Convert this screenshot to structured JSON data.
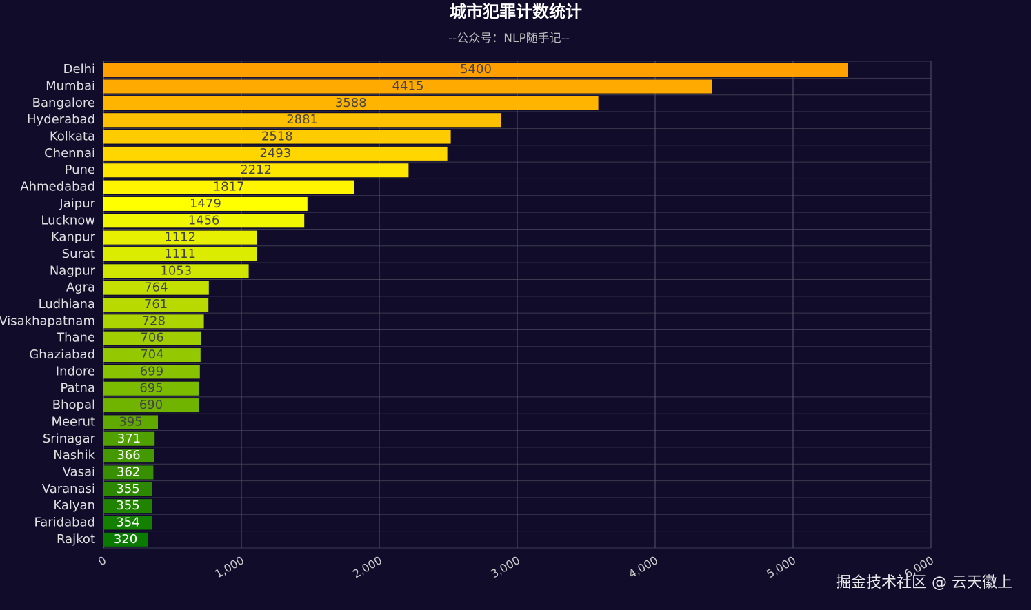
{
  "chart_data": {
    "type": "hbar",
    "title": "城市犯罪计数统计",
    "subtitle": "--公众号：NLP随手记--",
    "categories": [
      "Delhi",
      "Mumbai",
      "Bangalore",
      "Hyderabad",
      "Kolkata",
      "Chennai",
      "Pune",
      "Ahmedabad",
      "Jaipur",
      "Lucknow",
      "Kanpur",
      "Surat",
      "Nagpur",
      "Agra",
      "Ludhiana",
      "Visakhapatnam",
      "Thane",
      "Ghaziabad",
      "Indore",
      "Patna",
      "Bhopal",
      "Meerut",
      "Srinagar",
      "Nashik",
      "Vasai",
      "Varanasi",
      "Kalyan",
      "Faridabad",
      "Rajkot"
    ],
    "values": [
      5400,
      4415,
      3588,
      2881,
      2518,
      2493,
      2212,
      1817,
      1479,
      1456,
      1112,
      1111,
      1053,
      764,
      761,
      728,
      706,
      704,
      699,
      695,
      690,
      395,
      371,
      366,
      362,
      355,
      355,
      354,
      320
    ],
    "colors": [
      "#ffa000",
      "#ffaa00",
      "#ffb400",
      "#ffc000",
      "#ffcc00",
      "#ffd600",
      "#ffe600",
      "#fff500",
      "#ffff00",
      "#f0f500",
      "#e6f000",
      "#dcec00",
      "#d0e600",
      "#c4e000",
      "#b8da00",
      "#acd400",
      "#a0ce00",
      "#94c800",
      "#88c200",
      "#7cbc00",
      "#70b400",
      "#60aa00",
      "#50a000",
      "#449800",
      "#389000",
      "#2c8800",
      "#208400",
      "#148000",
      "#0a7a00"
    ],
    "xlim": [
      0,
      6000
    ],
    "xticks": [
      0,
      {
        "value": 1000,
        "label": "1,000"
      },
      {
        "value": 2000,
        "label": "2,000"
      },
      {
        "value": 3000,
        "label": "3,000"
      },
      {
        "value": 4000,
        "label": "4,000"
      },
      {
        "value": 5000,
        "label": "5,000"
      },
      {
        "value": 6000,
        "label": "6,000"
      }
    ],
    "grid": true,
    "watermark": "掘金技术社区 @ 云天徽上"
  }
}
